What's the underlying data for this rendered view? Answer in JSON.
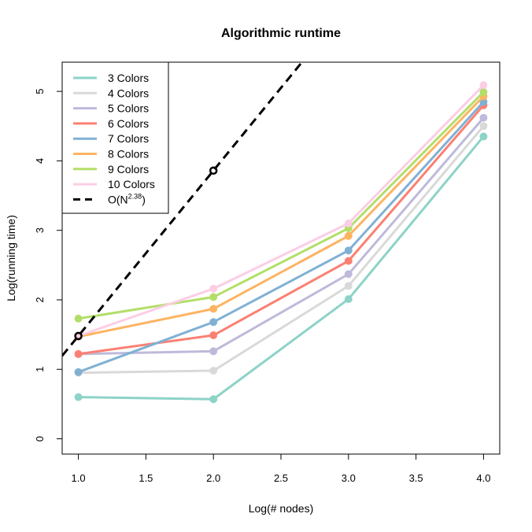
{
  "chart_data": {
    "type": "line",
    "title": "Algorithmic runtime",
    "xlabel": "Log(# nodes)",
    "ylabel": "Log(running time)",
    "xlim": [
      0.88,
      4.12
    ],
    "ylim": [
      -0.22,
      5.42
    ],
    "xticks": [
      1.0,
      1.5,
      2.0,
      2.5,
      3.0,
      3.5,
      4.0
    ],
    "xtick_labels": [
      "1.0",
      "1.5",
      "2.0",
      "2.5",
      "3.0",
      "3.5",
      "4.0"
    ],
    "yticks": [
      0,
      1,
      2,
      3,
      4,
      5
    ],
    "ytick_labels": [
      "0",
      "1",
      "2",
      "3",
      "4",
      "5"
    ],
    "legend_position": "top-left",
    "grid": false,
    "x": [
      1.0,
      2.0,
      3.0,
      4.0
    ],
    "series": [
      {
        "name": "3 Colors",
        "color": "#8dd3c7",
        "values": [
          0.6,
          0.57,
          2.01,
          4.35
        ]
      },
      {
        "name": "4 Colors",
        "color": "#d9d9d9",
        "values": [
          0.95,
          0.98,
          2.2,
          4.5
        ]
      },
      {
        "name": "5 Colors",
        "color": "#bebada",
        "values": [
          1.22,
          1.26,
          2.37,
          4.62
        ]
      },
      {
        "name": "6 Colors",
        "color": "#fb8072",
        "values": [
          1.22,
          1.49,
          2.56,
          4.8
        ]
      },
      {
        "name": "7 Colors",
        "color": "#80b1d3",
        "values": [
          0.96,
          1.68,
          2.71,
          4.85
        ]
      },
      {
        "name": "8 Colors",
        "color": "#fdb462",
        "values": [
          1.47,
          1.87,
          2.92,
          4.93
        ]
      },
      {
        "name": "9 Colors",
        "color": "#b3de69",
        "values": [
          1.73,
          2.04,
          3.03,
          4.99
        ]
      },
      {
        "name": "10 Colors",
        "color": "#fccde5",
        "values": [
          1.48,
          2.16,
          3.1,
          5.09
        ]
      }
    ],
    "reference_line": {
      "name_base": "O(N",
      "name_exponent": "2.38",
      "name_suffix": ")",
      "color": "#000000",
      "style": "dashed",
      "slope": 2.38,
      "intercept": -0.9,
      "marked_points": [
        [
          1.0,
          1.48
        ],
        [
          2.0,
          3.86
        ]
      ]
    }
  }
}
